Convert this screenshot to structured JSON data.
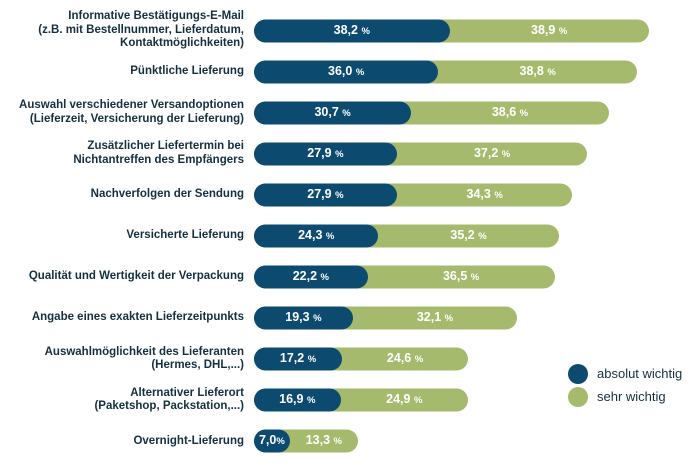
{
  "chart_data": {
    "type": "bar",
    "orientation": "horizontal",
    "stacked": true,
    "unit": "%",
    "title": "",
    "xlabel": "",
    "ylabel": "",
    "xlim": [
      0,
      80
    ],
    "grid": false,
    "legend_position": "bottom-right",
    "series": [
      {
        "name": "absolut wichtig",
        "color": "#0d4a70",
        "values": [
          38.2,
          36.0,
          30.7,
          27.9,
          27.9,
          24.3,
          22.2,
          19.3,
          17.2,
          16.9,
          7.0
        ]
      },
      {
        "name": "sehr wichtig",
        "color": "#a5ba6d",
        "values": [
          38.9,
          38.8,
          38.6,
          37.2,
          34.3,
          35.2,
          36.5,
          32.1,
          24.6,
          24.9,
          13.3
        ]
      }
    ],
    "categories": [
      {
        "label_lines": [
          "Informative Bestätigungs-E-Mail",
          "(z.B. mit Bestellnummer, Lieferdatum,",
          "Kontaktmöglichkeiten)"
        ],
        "values": [
          38.2,
          38.9
        ],
        "value_labels": [
          "38,2 %",
          "38,9 %"
        ]
      },
      {
        "label_lines": [
          "Pünktliche Lieferung"
        ],
        "values": [
          36.0,
          38.8
        ],
        "value_labels": [
          "36,0 %",
          "38,8 %"
        ]
      },
      {
        "label_lines": [
          "Auswahl verschiedener Versandoptionen",
          "(Lieferzeit, Versicherung der Lieferung)"
        ],
        "values": [
          30.7,
          38.6
        ],
        "value_labels": [
          "30,7 %",
          "38,6 %"
        ]
      },
      {
        "label_lines": [
          "Zusätzlicher Liefertermin bei",
          "Nichtantreffen des Empfängers"
        ],
        "values": [
          27.9,
          37.2
        ],
        "value_labels": [
          "27,9 %",
          "37,2 %"
        ]
      },
      {
        "label_lines": [
          "Nachverfolgen der Sendung"
        ],
        "values": [
          27.9,
          34.3
        ],
        "value_labels": [
          "27,9 %",
          "34,3 %"
        ]
      },
      {
        "label_lines": [
          "Versicherte Lieferung"
        ],
        "values": [
          24.3,
          35.2
        ],
        "value_labels": [
          "24,3 %",
          "35,2 %"
        ]
      },
      {
        "label_lines": [
          "Qualität und Wertigkeit der Verpackung"
        ],
        "values": [
          22.2,
          36.5
        ],
        "value_labels": [
          "22,2 %",
          "36,5 %"
        ]
      },
      {
        "label_lines": [
          "Angabe eines exakten Lieferzeitpunkts"
        ],
        "values": [
          19.3,
          32.1
        ],
        "value_labels": [
          "19,3 %",
          "32,1 %"
        ]
      },
      {
        "label_lines": [
          "Auswahlmöglichkeit des Lieferanten",
          "(Hermes, DHL,...)"
        ],
        "values": [
          17.2,
          24.6
        ],
        "value_labels": [
          "17,2 %",
          "24,6 %"
        ]
      },
      {
        "label_lines": [
          "Alternativer Lieferort",
          "(Paketshop, Packstation,...)"
        ],
        "values": [
          16.9,
          24.9
        ],
        "value_labels": [
          "16,9 %",
          "24,9 %"
        ]
      },
      {
        "label_lines": [
          "Overnight-Lieferung"
        ],
        "values": [
          7.0,
          13.3
        ],
        "value_labels": [
          "7,0%",
          "13,3 %"
        ]
      }
    ],
    "colors": {
      "absolut_wichtig": "#0d4a70",
      "sehr_wichtig": "#a5ba6d"
    },
    "legend": [
      {
        "name": "absolut wichtig",
        "color": "#0d4a70"
      },
      {
        "name": "sehr wichtig",
        "color": "#a5ba6d"
      }
    ]
  }
}
